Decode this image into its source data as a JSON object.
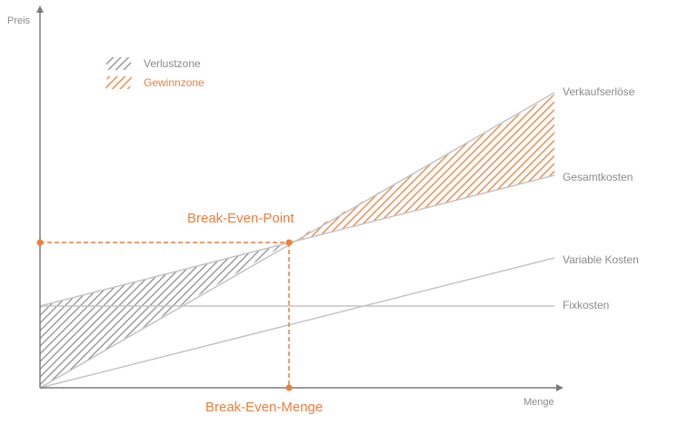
{
  "colors": {
    "accent": "#f07d3a",
    "line": "#c4c4c4",
    "axis": "#7a7a7a",
    "text": "#8a8a8a",
    "loss_hatch": "#8f8f8f"
  },
  "axes": {
    "y_label": "Preis",
    "x_label": "Menge"
  },
  "legend": {
    "loss_label": "Verlustzone",
    "profit_label": "Gewinnzone"
  },
  "lines": {
    "revenue_label": "Verkaufserlöse",
    "total_cost_label": "Gesamtkosten",
    "variable_cost_label": "Variable Kosten",
    "fixed_cost_label": "Fixkosten"
  },
  "annotations": {
    "break_even_point": "Break-Even-Point",
    "break_even_quantity": "Break-Even-Menge"
  }
}
